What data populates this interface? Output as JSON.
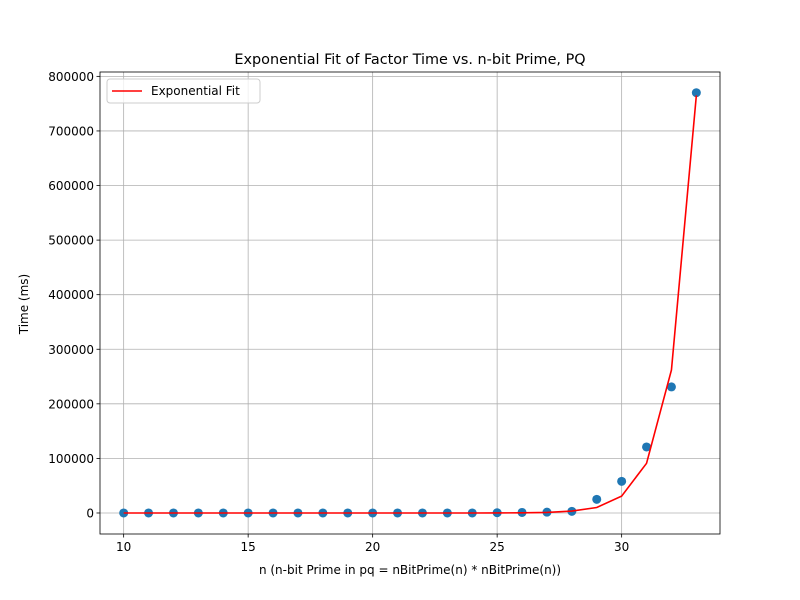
{
  "chart_data": {
    "type": "scatter",
    "title": "Exponential Fit of Factor Time vs. n-bit Prime, PQ",
    "xlabel": "n (n-bit Prime in pq = nBitPrime(n) * nBitPrime(n))",
    "ylabel": "Time (ms)",
    "xlim": [
      9.05,
      33.95
    ],
    "ylim": [
      -38500,
      808000
    ],
    "xticks": [
      10,
      15,
      20,
      25,
      30
    ],
    "yticks": [
      0,
      100000,
      200000,
      300000,
      400000,
      500000,
      600000,
      700000,
      800000
    ],
    "ytick_labels": [
      "0",
      "100000",
      "200000",
      "300000",
      "400000",
      "500000",
      "600000",
      "700000",
      "800000"
    ],
    "grid": true,
    "legend": {
      "position": "top-left",
      "entries": [
        "Exponential Fit"
      ]
    },
    "series": [
      {
        "kind": "scatter",
        "color": "#1f77b4",
        "x": [
          10,
          11,
          12,
          13,
          14,
          15,
          16,
          17,
          18,
          19,
          20,
          21,
          22,
          23,
          24,
          25,
          26,
          27,
          28,
          29,
          30,
          31,
          32,
          33
        ],
        "y": [
          0,
          0,
          0,
          0,
          0,
          0,
          0,
          0,
          0,
          0,
          0,
          0,
          0,
          0,
          0,
          500,
          1000,
          1500,
          3000,
          25000,
          58000,
          121000,
          231000,
          770000
        ]
      },
      {
        "kind": "line",
        "name": "Exponential Fit",
        "color": "#ff0000",
        "x": [
          10,
          11,
          12,
          13,
          14,
          15,
          16,
          17,
          18,
          19,
          20,
          21,
          22,
          23,
          24,
          25,
          26,
          27,
          28,
          29,
          30,
          31,
          32,
          33
        ],
        "y": [
          0,
          0,
          0,
          0,
          0,
          0,
          0,
          0,
          0,
          0,
          0,
          0,
          0,
          0,
          0,
          100,
          300,
          1000,
          3500,
          10000,
          31000,
          91000,
          262000,
          765000
        ]
      }
    ]
  }
}
